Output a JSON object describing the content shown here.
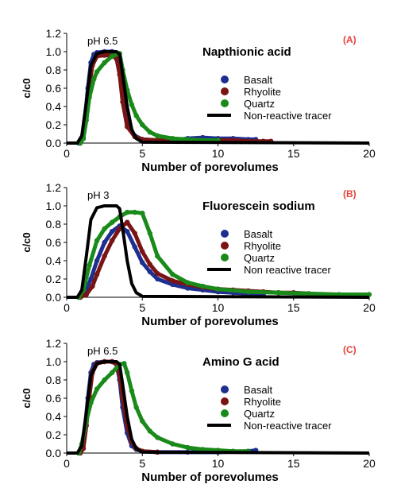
{
  "figure": {
    "panels": [
      {
        "label": "(A)",
        "title": "Napthionic acid",
        "annotation": "pH 6.5",
        "xlabel": "Number of porevolumes",
        "ylabel": "c/c0"
      },
      {
        "label": "(B)",
        "title": "Fluorescein sodium",
        "annotation": "pH 3",
        "xlabel": "Number of porevolumes",
        "ylabel": "c/c0"
      },
      {
        "label": "(C)",
        "title": "Amino G acid",
        "annotation": "pH 6.5",
        "xlabel": "Number of porevolumes",
        "ylabel": "c/c0"
      }
    ],
    "label_color": "#e8413c"
  },
  "chart_data": [
    {
      "type": "scatter",
      "title": "Napthionic acid",
      "xlabel": "Number of porevolumes",
      "ylabel": "c/c0",
      "xlim": [
        0,
        20
      ],
      "ylim": [
        0,
        1.2
      ],
      "xticks": [
        "0",
        "5",
        "10",
        "15",
        "20"
      ],
      "yticks": [
        "0.0",
        "0.2",
        "0.4",
        "0.6",
        "0.8",
        "1.0",
        "1.2"
      ],
      "annotations": [
        "pH 6.5",
        "(A)"
      ],
      "legend_position": "right",
      "series": [
        {
          "name": "Basalt",
          "color": "#1f2f8f",
          "marker": "circle",
          "x": [
            0.8,
            1.0,
            1.2,
            1.4,
            1.6,
            1.8,
            2.0,
            2.5,
            3.0,
            3.3,
            3.5,
            3.7,
            4.0,
            4.5,
            5.0,
            6.0,
            7.0,
            8.0,
            9.0,
            10.0,
            11.0,
            12.0,
            12.5
          ],
          "y": [
            0.0,
            0.05,
            0.25,
            0.6,
            0.88,
            0.97,
            0.99,
            1.0,
            1.0,
            0.96,
            0.8,
            0.5,
            0.2,
            0.08,
            0.04,
            0.03,
            0.03,
            0.05,
            0.06,
            0.05,
            0.05,
            0.04,
            0.04
          ]
        },
        {
          "name": "Rhyolite",
          "color": "#7a1414",
          "marker": "circle",
          "x": [
            0.9,
            1.1,
            1.3,
            1.5,
            1.7,
            2.0,
            2.5,
            3.0,
            3.3,
            3.5,
            3.7,
            4.0,
            4.5,
            5.0,
            6.0,
            7.0,
            8.0,
            9.0,
            10.0,
            11.0,
            12.0,
            13.0,
            13.5
          ],
          "y": [
            0.0,
            0.05,
            0.3,
            0.62,
            0.85,
            0.95,
            0.96,
            0.96,
            0.92,
            0.75,
            0.45,
            0.18,
            0.07,
            0.04,
            0.03,
            0.03,
            0.03,
            0.03,
            0.03,
            0.03,
            0.02,
            0.02,
            0.02
          ]
        },
        {
          "name": "Quartz",
          "color": "#1a8a1a",
          "marker": "circle",
          "x": [
            0.9,
            1.1,
            1.3,
            1.5,
            1.8,
            2.0,
            2.5,
            3.0,
            3.5,
            3.7,
            4.0,
            4.3,
            4.6,
            5.0,
            5.5,
            6.0,
            7.0,
            8.0,
            9.0,
            10.0
          ],
          "y": [
            0.0,
            0.05,
            0.25,
            0.5,
            0.7,
            0.78,
            0.88,
            0.95,
            0.98,
            0.8,
            0.58,
            0.42,
            0.3,
            0.2,
            0.12,
            0.08,
            0.05,
            0.04,
            0.03,
            0.03
          ]
        },
        {
          "name": "Non-reactive tracer",
          "color": "#000000",
          "marker": "line",
          "x": [
            0.0,
            0.7,
            1.0,
            1.3,
            1.6,
            2.0,
            2.5,
            3.0,
            3.3,
            3.5,
            3.7,
            4.0,
            4.3,
            4.6,
            5.0,
            20.0
          ],
          "y": [
            0.0,
            0.0,
            0.08,
            0.45,
            0.85,
            0.98,
            1.0,
            1.0,
            1.0,
            0.97,
            0.75,
            0.4,
            0.15,
            0.05,
            0.01,
            0.0
          ]
        }
      ]
    },
    {
      "type": "scatter",
      "title": "Fluorescein sodium",
      "xlabel": "Number of porevolumes",
      "ylabel": "c/c0",
      "xlim": [
        0,
        20
      ],
      "ylim": [
        0,
        1.2
      ],
      "xticks": [
        "0",
        "5",
        "10",
        "15",
        "20"
      ],
      "yticks": [
        "0.0",
        "0.2",
        "0.4",
        "0.6",
        "0.8",
        "1.0",
        "1.2"
      ],
      "annotations": [
        "pH 3",
        "(B)"
      ],
      "legend_position": "right",
      "series": [
        {
          "name": "Basalt",
          "color": "#1f2f8f",
          "marker": "circle",
          "x": [
            0.8,
            1.2,
            1.6,
            2.0,
            2.5,
            3.0,
            3.5,
            4.0,
            4.5,
            5.0,
            5.5,
            6.0,
            7.0,
            8.0,
            9.0,
            10.0,
            11.0,
            12.0,
            13.0
          ],
          "y": [
            0.0,
            0.05,
            0.2,
            0.4,
            0.6,
            0.72,
            0.78,
            0.72,
            0.55,
            0.38,
            0.28,
            0.2,
            0.14,
            0.1,
            0.08,
            0.06,
            0.05,
            0.04,
            0.03
          ]
        },
        {
          "name": "Rhyolite",
          "color": "#7a1414",
          "marker": "circle",
          "x": [
            0.9,
            1.3,
            1.7,
            2.0,
            2.5,
            3.0,
            3.5,
            4.0,
            4.5,
            5.0,
            5.5,
            6.0,
            7.0,
            8.0,
            9.0,
            10.0,
            11.0,
            12.0,
            13.0,
            14.0,
            15.0,
            16.0
          ],
          "y": [
            0.0,
            0.03,
            0.12,
            0.25,
            0.45,
            0.62,
            0.75,
            0.82,
            0.7,
            0.5,
            0.36,
            0.26,
            0.18,
            0.14,
            0.11,
            0.09,
            0.08,
            0.07,
            0.06,
            0.05,
            0.05,
            0.04
          ]
        },
        {
          "name": "Quartz",
          "color": "#1a8a1a",
          "marker": "circle",
          "x": [
            0.8,
            1.1,
            1.5,
            2.0,
            2.5,
            3.0,
            3.5,
            4.0,
            4.5,
            5.0,
            5.5,
            6.0,
            7.0,
            8.0,
            9.0,
            10.0,
            12.0,
            14.0,
            16.0,
            18.0,
            20.0
          ],
          "y": [
            0.0,
            0.08,
            0.35,
            0.62,
            0.75,
            0.82,
            0.88,
            0.93,
            0.93,
            0.92,
            0.7,
            0.45,
            0.25,
            0.16,
            0.12,
            0.09,
            0.06,
            0.05,
            0.04,
            0.03,
            0.03
          ]
        },
        {
          "name": "Non reactive tracer",
          "color": "#000000",
          "marker": "line",
          "x": [
            0.0,
            0.7,
            1.0,
            1.3,
            1.6,
            2.0,
            2.5,
            3.0,
            3.3,
            3.5,
            3.7,
            4.0,
            4.3,
            4.6,
            5.0,
            20.0
          ],
          "y": [
            0.0,
            0.0,
            0.08,
            0.45,
            0.85,
            0.98,
            1.0,
            1.0,
            1.0,
            0.97,
            0.75,
            0.4,
            0.15,
            0.05,
            0.01,
            0.0
          ]
        }
      ]
    },
    {
      "type": "scatter",
      "title": "Amino G acid",
      "xlabel": "Number of porevolumes",
      "ylabel": "c/c0",
      "xlim": [
        0,
        20
      ],
      "ylim": [
        0,
        1.2
      ],
      "xticks": [
        "0",
        "5",
        "10",
        "15",
        "20"
      ],
      "yticks": [
        "0.0",
        "0.2",
        "0.4",
        "0.6",
        "0.8",
        "1.0",
        "1.2"
      ],
      "annotations": [
        "pH 6.5",
        "(C)"
      ],
      "legend_position": "right",
      "series": [
        {
          "name": "Basalt",
          "color": "#1f2f8f",
          "marker": "circle",
          "x": [
            0.8,
            1.0,
            1.2,
            1.4,
            1.6,
            1.8,
            2.0,
            2.5,
            3.0,
            3.3,
            3.5,
            3.7,
            4.0,
            4.3,
            4.6,
            5.0,
            6.0,
            8.0,
            10.0,
            12.0,
            12.5
          ],
          "y": [
            0.0,
            0.05,
            0.25,
            0.6,
            0.88,
            0.97,
            0.99,
            1.0,
            1.0,
            0.97,
            0.8,
            0.5,
            0.22,
            0.08,
            0.04,
            0.02,
            0.01,
            0.01,
            0.01,
            0.02,
            0.03
          ]
        },
        {
          "name": "Rhyolite",
          "color": "#7a1414",
          "marker": "circle",
          "x": [
            0.9,
            1.1,
            1.3,
            1.5,
            1.7,
            2.0,
            2.5,
            3.0,
            3.3,
            3.5,
            3.7,
            4.0,
            4.3,
            4.6,
            5.0,
            6.0
          ],
          "y": [
            0.0,
            0.05,
            0.3,
            0.62,
            0.88,
            0.98,
            1.0,
            1.0,
            0.97,
            0.85,
            0.6,
            0.3,
            0.12,
            0.05,
            0.02,
            0.01
          ]
        },
        {
          "name": "Quartz",
          "color": "#1a8a1a",
          "marker": "circle",
          "x": [
            0.8,
            1.0,
            1.3,
            1.6,
            2.0,
            2.5,
            3.0,
            3.5,
            3.8,
            4.0,
            4.3,
            4.6,
            5.0,
            5.5,
            6.0,
            7.0,
            8.0,
            9.0,
            10.0,
            11.0,
            12.0
          ],
          "y": [
            0.0,
            0.1,
            0.35,
            0.55,
            0.7,
            0.8,
            0.88,
            0.97,
            0.98,
            0.88,
            0.68,
            0.5,
            0.35,
            0.24,
            0.17,
            0.1,
            0.06,
            0.04,
            0.03,
            0.02,
            0.02
          ]
        },
        {
          "name": "Non-reactive tracer",
          "color": "#000000",
          "marker": "line",
          "x": [
            0.0,
            0.7,
            1.0,
            1.3,
            1.6,
            2.0,
            2.5,
            3.0,
            3.3,
            3.5,
            3.7,
            4.0,
            4.3,
            4.6,
            5.0,
            20.0
          ],
          "y": [
            0.0,
            0.0,
            0.08,
            0.45,
            0.85,
            0.98,
            1.0,
            1.0,
            1.0,
            0.97,
            0.75,
            0.4,
            0.15,
            0.05,
            0.01,
            0.0
          ]
        }
      ]
    }
  ]
}
